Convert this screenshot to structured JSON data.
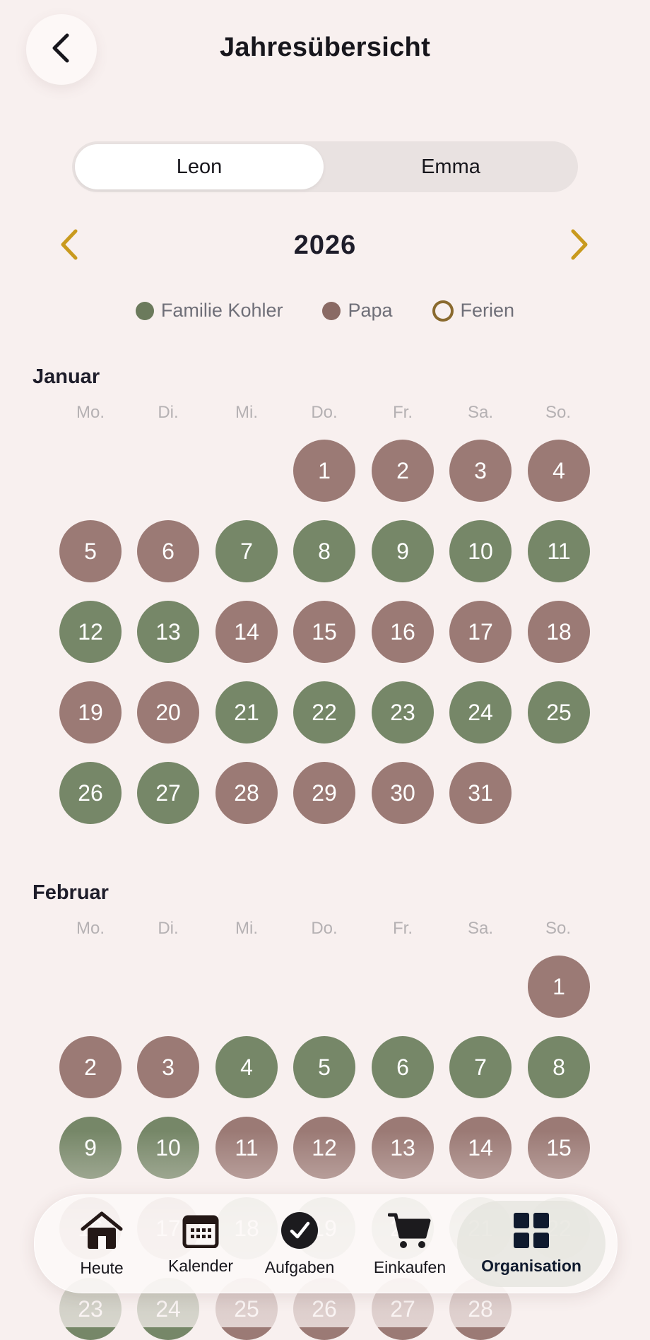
{
  "header": {
    "title": "Jahresübersicht",
    "back_icon": "chevron-left-icon"
  },
  "segmented": {
    "options": [
      "Leon",
      "Emma"
    ],
    "selected": "Leon"
  },
  "year_nav": {
    "year": "2026",
    "prev_icon": "chevron-left-icon",
    "next_icon": "chevron-right-icon",
    "accent": "#c99a1e"
  },
  "legend": [
    {
      "label": "Familie Kohler",
      "color": "#6b7a5c",
      "style": "filled"
    },
    {
      "label": "Papa",
      "color": "#8a6a64",
      "style": "filled"
    },
    {
      "label": "Ferien",
      "color": "#8a6a2e",
      "style": "outline"
    }
  ],
  "colors": {
    "papa": "#9b7a75",
    "familie": "#768768",
    "background": "#f8f0ef"
  },
  "weekdays": [
    "Mo.",
    "Di.",
    "Mi.",
    "Do.",
    "Fr.",
    "Sa.",
    "So."
  ],
  "months": [
    {
      "name": "Januar",
      "start_weekday": 3,
      "assignments": [
        "papa",
        "papa",
        "papa",
        "papa",
        "papa",
        "papa",
        "fam",
        "fam",
        "fam",
        "fam",
        "fam",
        "fam",
        "fam",
        "papa",
        "papa",
        "papa",
        "papa",
        "papa",
        "papa",
        "papa",
        "fam",
        "fam",
        "fam",
        "fam",
        "fam",
        "fam",
        "fam",
        "papa",
        "papa",
        "papa",
        "papa"
      ]
    },
    {
      "name": "Februar",
      "start_weekday": 6,
      "assignments": [
        "papa",
        "papa",
        "papa",
        "fam",
        "fam",
        "fam",
        "fam",
        "fam",
        "fam",
        "fam",
        "papa",
        "papa",
        "papa",
        "papa",
        "papa",
        "papa",
        "papa",
        "fam",
        "fam",
        "fam",
        "fam",
        "fam",
        "fam",
        "fam",
        "papa",
        "papa",
        "papa",
        "papa"
      ]
    }
  ],
  "tabbar": {
    "items": [
      {
        "label": "Heute",
        "icon": "home-icon"
      },
      {
        "label": "Kalender",
        "icon": "calendar-icon"
      },
      {
        "label": "Aufgaben",
        "icon": "checkmark-circle-icon"
      },
      {
        "label": "Einkaufen",
        "icon": "cart-icon"
      },
      {
        "label": "Organisation",
        "icon": "grid-icon"
      }
    ],
    "active": "Organisation"
  }
}
